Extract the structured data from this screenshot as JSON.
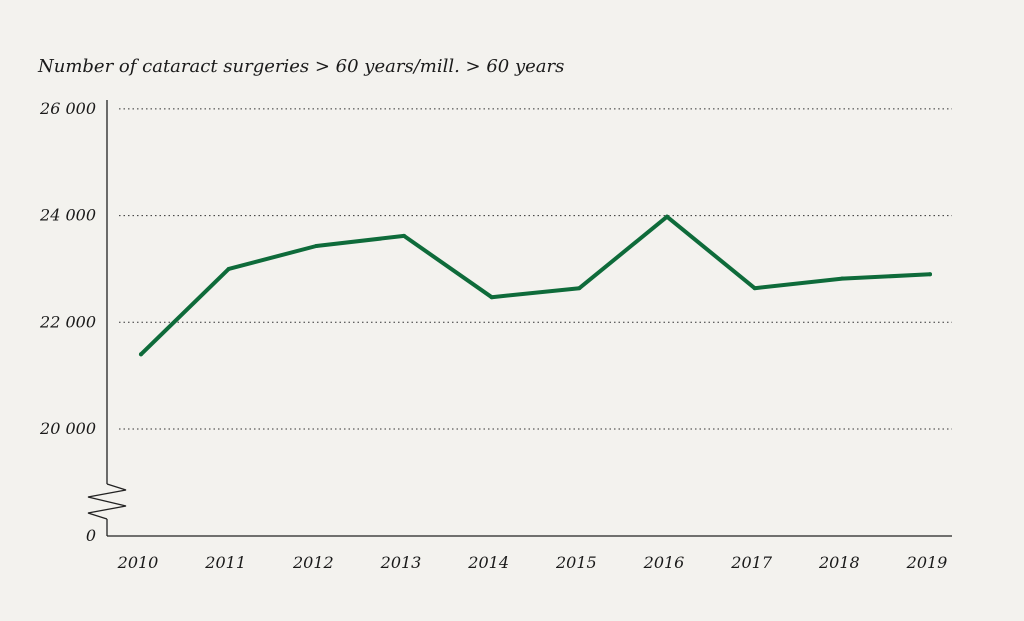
{
  "chart_data": {
    "type": "line",
    "title": "Number of cataract surgeries > 60 years/mill. > 60 years",
    "xlabel": "",
    "ylabel": "",
    "categories": [
      "2010",
      "2011",
      "2012",
      "2013",
      "2014",
      "2015",
      "2016",
      "2017",
      "2018",
      "2019"
    ],
    "series": [
      {
        "name": "Cataract surgeries",
        "values": [
          21400,
          23000,
          23430,
          23620,
          22470,
          22640,
          23980,
          22640,
          22820,
          22900
        ],
        "color": "#0e6b3a"
      }
    ],
    "ylim": [
      19000,
      26000
    ],
    "yticks": [
      {
        "value": 26000,
        "label": "26 000"
      },
      {
        "value": 24000,
        "label": "24 000"
      },
      {
        "value": 22000,
        "label": "22 000"
      },
      {
        "value": 20000,
        "label": "20 000"
      }
    ],
    "axis_break": {
      "label": "0"
    },
    "grid": true
  }
}
